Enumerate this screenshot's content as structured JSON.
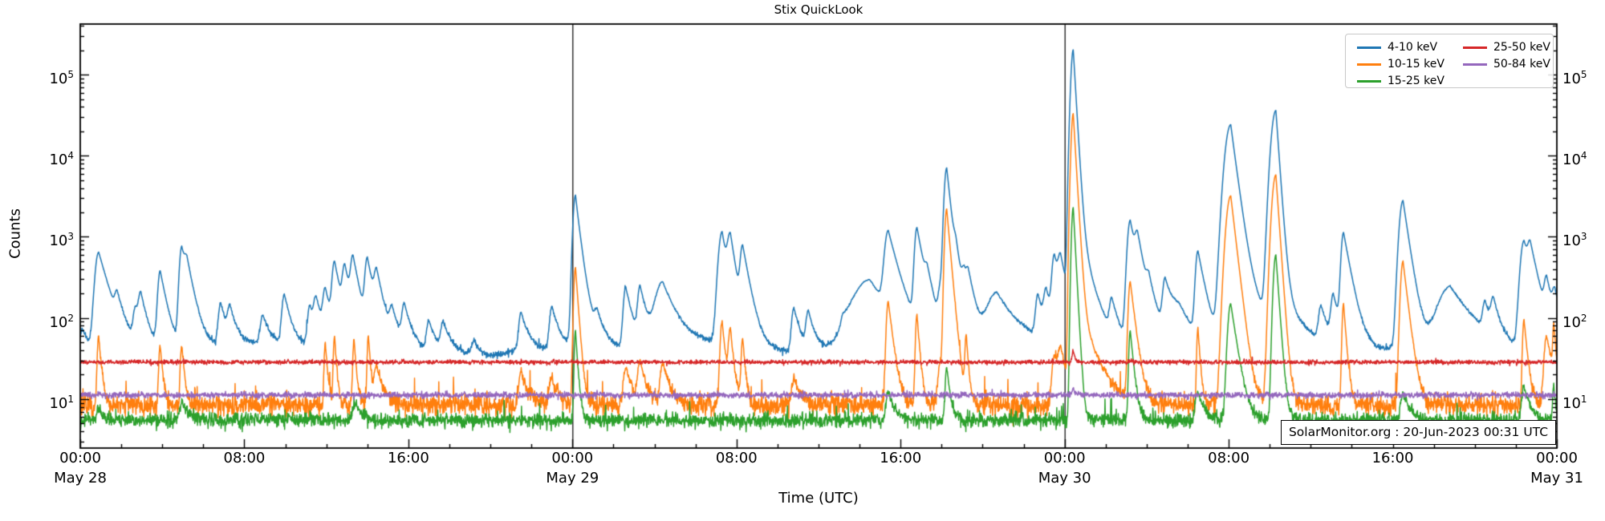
{
  "chart_data": {
    "type": "line",
    "title": "Stix QuickLook",
    "xlabel": "Time (UTC)",
    "ylabel": "Counts",
    "yscale": "log",
    "ylim": [
      2.49,
      420000
    ],
    "x_range_hours": [
      0,
      72
    ],
    "x_start": "May 28 00:00 UTC",
    "x_end": "May 31 00:00 UTC",
    "grid": false,
    "day_boundary_lines_hours": [
      24,
      48
    ],
    "annotation": "SolarMonitor.org : 20-Jun-2023 00:31 UTC",
    "legend": {
      "position": "upper right",
      "columns": 2
    },
    "x_ticks": [
      {
        "hour": 0,
        "label": "00:00",
        "date": "May 28"
      },
      {
        "hour": 8,
        "label": "08:00"
      },
      {
        "hour": 16,
        "label": "16:00"
      },
      {
        "hour": 24,
        "label": "00:00",
        "date": "May 29"
      },
      {
        "hour": 32,
        "label": "08:00"
      },
      {
        "hour": 40,
        "label": "16:00"
      },
      {
        "hour": 48,
        "label": "00:00",
        "date": "May 30"
      },
      {
        "hour": 56,
        "label": "08:00"
      },
      {
        "hour": 64,
        "label": "16:00"
      },
      {
        "hour": 72,
        "label": "00:00",
        "date": "May 31"
      }
    ],
    "y_ticks": [
      {
        "base": "10",
        "exp": "1",
        "value": 10
      },
      {
        "base": "10",
        "exp": "2",
        "value": 100
      },
      {
        "base": "10",
        "exp": "3",
        "value": 1000
      },
      {
        "base": "10",
        "exp": "4",
        "value": 10000
      },
      {
        "base": "10",
        "exp": "5",
        "value": 100000
      }
    ],
    "series": [
      {
        "name": "4-10 keV",
        "color": "#1f77b4",
        "seed": 11,
        "baseline": 42,
        "noise_sigma": 0.022,
        "micro_spikes": {
          "prob": 0.0015,
          "min": 1.15,
          "max": 1.45
        },
        "wander": [
          [
            18.5,
            0.1,
            4.4
          ],
          [
            7.3,
            0.07,
            0.4
          ],
          [
            3.1,
            0.045,
            2.0
          ]
        ],
        "peaks": [
          [
            0.1,
            75
          ],
          [
            0.9,
            650,
            0.15,
            0.45
          ],
          [
            1.8,
            140
          ],
          [
            2.7,
            120
          ],
          [
            2.95,
            170
          ],
          [
            3.9,
            380
          ],
          [
            4.95,
            750,
            0.1,
            0.3
          ],
          [
            5.2,
            280
          ],
          [
            6.85,
            150
          ],
          [
            7.3,
            120
          ],
          [
            8.9,
            100
          ],
          [
            9.95,
            190
          ],
          [
            11.2,
            140
          ],
          [
            11.5,
            150
          ],
          [
            11.95,
            205
          ],
          [
            12.4,
            460
          ],
          [
            12.9,
            380
          ],
          [
            13.3,
            490
          ],
          [
            14.0,
            510
          ],
          [
            14.45,
            300
          ],
          [
            15.2,
            110
          ],
          [
            15.8,
            140
          ],
          [
            17.0,
            95
          ],
          [
            17.7,
            90
          ],
          [
            19.2,
            60
          ],
          [
            21.5,
            120
          ],
          [
            23.0,
            140
          ],
          [
            24.15,
            3200,
            0.1,
            0.18
          ],
          [
            24.45,
            180,
            0.25,
            0.5
          ],
          [
            25.2,
            90
          ],
          [
            26.6,
            240
          ],
          [
            27.3,
            230
          ],
          [
            28.4,
            270,
            0.3,
            0.6
          ],
          [
            31.3,
            1150,
            0.15,
            0.25
          ],
          [
            31.7,
            900,
            0.12,
            0.25
          ],
          [
            32.3,
            700
          ],
          [
            34.8,
            140
          ],
          [
            35.5,
            120
          ],
          [
            37.2,
            70
          ],
          [
            38.5,
            300,
            0.7,
            1.0
          ],
          [
            39.4,
            1100,
            0.15,
            0.4
          ],
          [
            40.8,
            1250,
            0.1,
            0.3
          ],
          [
            41.3,
            220
          ],
          [
            41.95,
            200
          ],
          [
            42.25,
            7000,
            0.1,
            0.18
          ],
          [
            42.7,
            420
          ],
          [
            43.1,
            250
          ],
          [
            43.3,
            230
          ],
          [
            44.7,
            200,
            0.4,
            0.8
          ],
          [
            46.7,
            180
          ],
          [
            47.1,
            190
          ],
          [
            47.5,
            560
          ],
          [
            47.8,
            420
          ],
          [
            48.25,
            6000,
            0.07,
            0.1
          ],
          [
            48.42,
            200000,
            0.09,
            0.1
          ],
          [
            48.55,
            1500,
            0.15,
            0.45
          ],
          [
            50.3,
            150
          ],
          [
            51.2,
            1600,
            0.12,
            0.3
          ],
          [
            51.55,
            700
          ],
          [
            52.1,
            190
          ],
          [
            52.9,
            260
          ],
          [
            53.6,
            130,
            0.5,
            0.8
          ],
          [
            54.5,
            650
          ],
          [
            56.1,
            24000,
            0.22,
            0.22
          ],
          [
            56.5,
            400,
            0.3,
            0.8
          ],
          [
            58.3,
            36000,
            0.18,
            0.12
          ],
          [
            58.5,
            200,
            0.15,
            0.3
          ],
          [
            58.8,
            120,
            0.3,
            0.9
          ],
          [
            60.5,
            130
          ],
          [
            61.1,
            180
          ],
          [
            61.6,
            1100,
            0.1,
            0.3
          ],
          [
            64.5,
            2800,
            0.15,
            0.25
          ],
          [
            66.8,
            240,
            0.5,
            0.9
          ],
          [
            68.5,
            130
          ],
          [
            68.9,
            140
          ],
          [
            70.4,
            900,
            0.15,
            0.4
          ],
          [
            70.7,
            500
          ],
          [
            71.5,
            250
          ],
          [
            71.9,
            160
          ]
        ]
      },
      {
        "name": "10-15 keV",
        "color": "#ff7f0e",
        "seed": 22,
        "baseline": 8.4,
        "noise_sigma": 0.065,
        "micro_spikes": {
          "prob": 0.007,
          "min": 1.4,
          "max": 2.3
        },
        "peaks": [
          [
            0.9,
            60,
            0.06,
            0.12
          ],
          [
            3.9,
            45,
            0.06,
            0.12
          ],
          [
            4.95,
            45,
            0.06,
            0.12
          ],
          [
            11.95,
            50,
            0.05,
            0.1
          ],
          [
            12.4,
            58,
            0.05,
            0.1
          ],
          [
            13.35,
            55,
            0.05,
            0.1
          ],
          [
            14.05,
            60,
            0.05,
            0.1
          ],
          [
            14.45,
            25
          ],
          [
            21.5,
            22
          ],
          [
            23.0,
            18
          ],
          [
            24.15,
            420,
            0.07,
            0.12
          ],
          [
            26.6,
            25
          ],
          [
            27.3,
            28
          ],
          [
            28.4,
            28
          ],
          [
            31.3,
            90,
            0.08,
            0.15
          ],
          [
            31.7,
            70,
            0.08,
            0.15
          ],
          [
            32.3,
            55,
            0.06,
            0.12
          ],
          [
            34.8,
            18
          ],
          [
            39.4,
            160,
            0.08,
            0.2
          ],
          [
            40.8,
            110,
            0.06,
            0.12
          ],
          [
            41.95,
            30
          ],
          [
            42.25,
            2200,
            0.08,
            0.15
          ],
          [
            43.2,
            60,
            0.05,
            0.1
          ],
          [
            47.5,
            35
          ],
          [
            47.8,
            35
          ],
          [
            48.25,
            800,
            0.05,
            0.08
          ],
          [
            48.42,
            33000,
            0.08,
            0.1
          ],
          [
            48.7,
            120,
            0.2,
            0.6
          ],
          [
            51.2,
            280,
            0.08,
            0.2
          ],
          [
            54.5,
            75,
            0.05,
            0.1
          ],
          [
            56.1,
            3200,
            0.18,
            0.2
          ],
          [
            58.3,
            5800,
            0.15,
            0.12
          ],
          [
            61.6,
            150,
            0.06,
            0.12
          ],
          [
            64.5,
            500,
            0.1,
            0.2
          ],
          [
            70.4,
            95,
            0.06,
            0.15
          ],
          [
            71.5,
            60
          ],
          [
            71.85,
            70,
            0.04,
            0.1
          ]
        ]
      },
      {
        "name": "15-25 keV",
        "color": "#2ca02c",
        "seed": 33,
        "baseline": 5.5,
        "noise_sigma": 0.045,
        "micro_spikes": {
          "prob": 0.004,
          "min": 1.25,
          "max": 1.8
        },
        "peaks": [
          [
            0.9,
            7.5
          ],
          [
            4.95,
            9
          ],
          [
            13.4,
            9
          ],
          [
            24.15,
            70,
            0.05,
            0.1
          ],
          [
            39.4,
            12
          ],
          [
            42.25,
            25,
            0.06,
            0.15
          ],
          [
            48.42,
            2300,
            0.07,
            0.09
          ],
          [
            51.2,
            70,
            0.06,
            0.15
          ],
          [
            54.5,
            12
          ],
          [
            56.1,
            150,
            0.12,
            0.25
          ],
          [
            58.3,
            600,
            0.1,
            0.12
          ],
          [
            64.5,
            12
          ],
          [
            70.4,
            14
          ],
          [
            71.85,
            15,
            0.04,
            0.08
          ]
        ]
      },
      {
        "name": "25-50 keV",
        "color": "#d62728",
        "seed": 44,
        "baseline": 28.5,
        "noise_sigma": 0.013,
        "peaks": [
          [
            48.42,
            40,
            0.05,
            0.08
          ]
        ]
      },
      {
        "name": "50-84 keV",
        "color": "#9467bd",
        "seed": 55,
        "baseline": 11.2,
        "noise_sigma": 0.018,
        "peaks": [
          [
            48.42,
            13.5,
            0.05,
            0.1
          ]
        ]
      }
    ]
  }
}
